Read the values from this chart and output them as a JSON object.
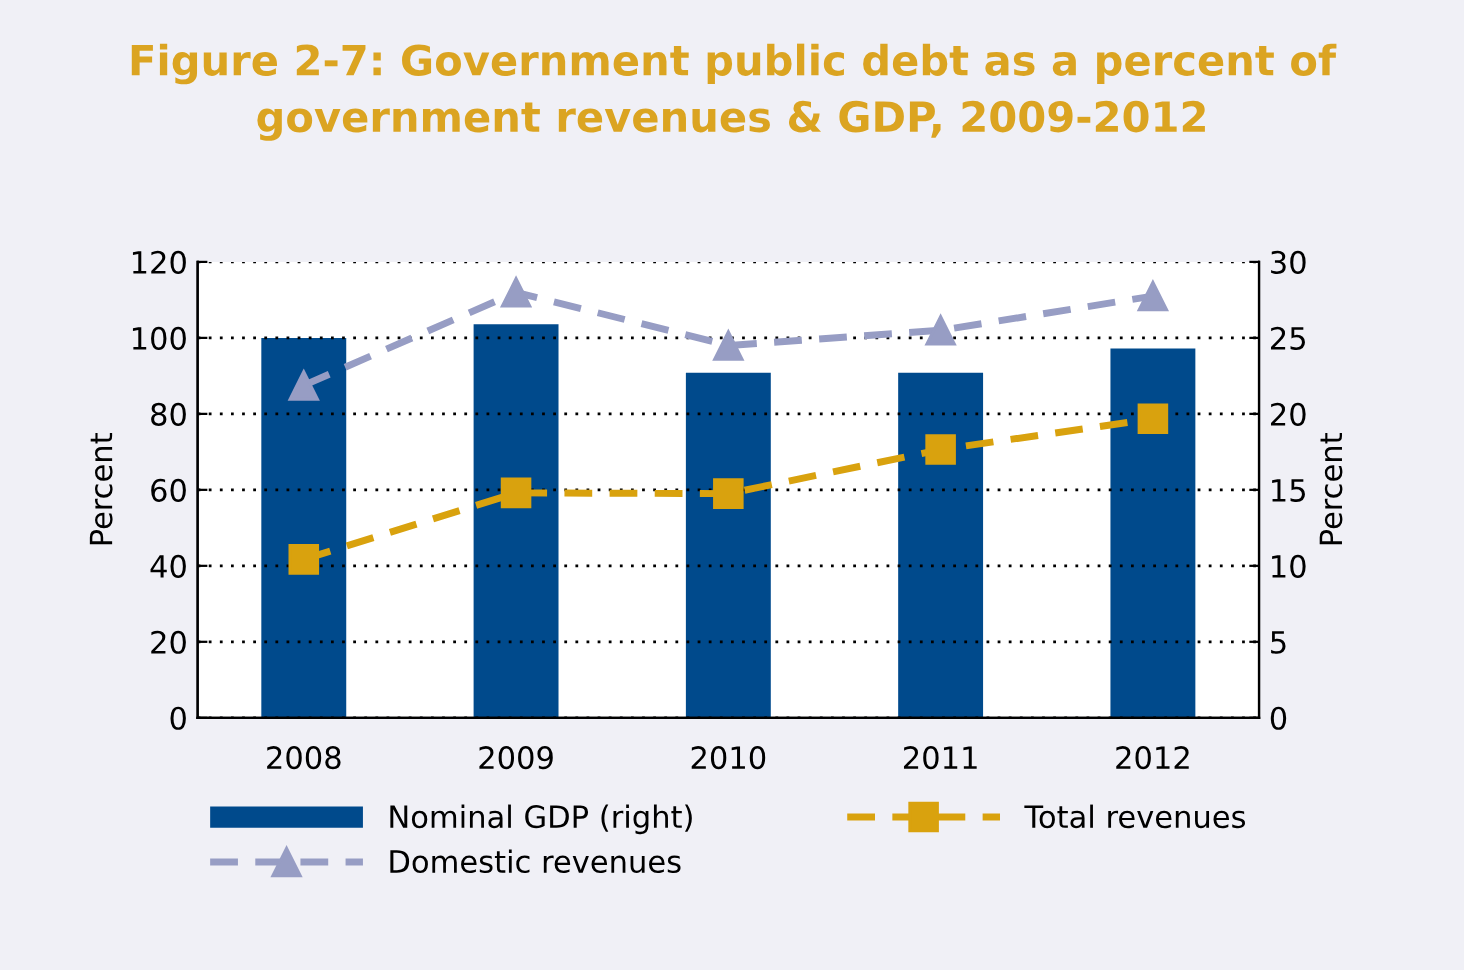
{
  "chart_data": {
    "type": "bar",
    "title": "Figure 2-7: Government public debt as a percent of\ngovernment revenues & GDP, 2009-2012",
    "categories": [
      "2008",
      "2009",
      "2010",
      "2011",
      "2012"
    ],
    "series": [
      {
        "name": "Nominal GDP (right)",
        "axis": "y2",
        "color": "#004a8c",
        "values": [
          25.0,
          25.9,
          22.7,
          22.7,
          24.3
        ]
      },
      {
        "name": "Total revenues",
        "type": "line",
        "color": "#d9a20e",
        "marker": "square",
        "line_style": "dashed",
        "values": [
          41.7,
          59.2,
          59,
          70.6,
          78.7
        ]
      },
      {
        "name": "Domestic revenues",
        "type": "line",
        "color": "#979dc4",
        "marker": "triangle",
        "line_style": "dashed",
        "values": [
          87.5,
          112,
          98,
          102,
          111
        ]
      }
    ],
    "ylabel": "Percent",
    "y2label": "Percent",
    "ylim": [
      0,
      120
    ],
    "yticks": [
      0,
      20,
      40,
      60,
      80,
      100,
      120
    ],
    "y2lim": [
      0,
      30
    ],
    "y2ticks": [
      0,
      5,
      10,
      15,
      20,
      25,
      30
    ],
    "grid": "y",
    "legend": "bottom"
  }
}
